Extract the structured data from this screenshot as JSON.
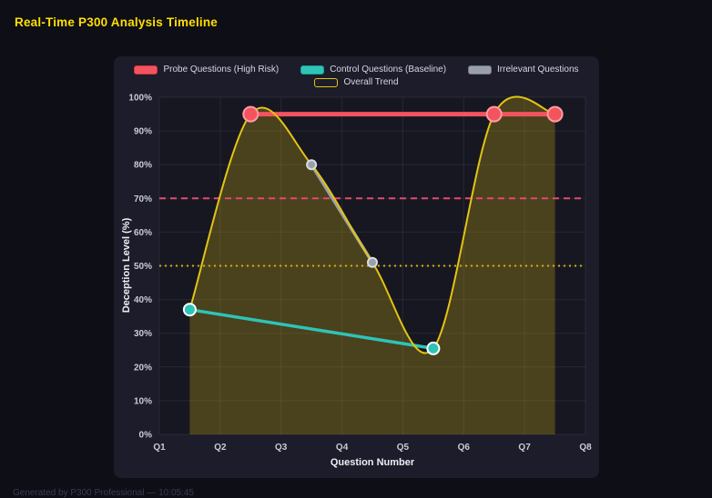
{
  "page": {
    "title": "Real-Time P300 Analysis Timeline",
    "footer": "Generated by P300 Professional — 10:05:45"
  },
  "colors": {
    "accent_yellow": "#ffdf00",
    "page_background": "#0e0e16",
    "panel_background": "#1c1c2a",
    "threshold_red": "#e8486e",
    "threshold_yellow": "#d4af06"
  },
  "chart_data": {
    "type": "line",
    "title": "Real-Time P300 Analysis Timeline",
    "xlabel": "Question Number",
    "ylabel": "Deception Level (%)",
    "xlim": [
      1,
      8
    ],
    "ylim": [
      0,
      100
    ],
    "grid": true,
    "legend_position": "top",
    "x_tick_values": [
      1,
      2,
      3,
      4,
      5,
      6,
      7,
      8
    ],
    "x_tick_labels": [
      "Q1",
      "Q2",
      "Q3",
      "Q4",
      "Q5",
      "Q6",
      "Q7",
      "Q8"
    ],
    "y_tick_values": [
      0,
      10,
      20,
      30,
      40,
      50,
      60,
      70,
      80,
      90,
      100
    ],
    "y_tick_labels": [
      "0%",
      "10%",
      "20%",
      "30%",
      "40%",
      "50%",
      "60%",
      "70%",
      "80%",
      "90%",
      "100%"
    ],
    "legend_rows": [
      [
        0,
        1,
        2
      ],
      [
        3
      ]
    ],
    "series": [
      {
        "key": "probe",
        "name": "Probe Questions (High Risk)",
        "color": "#f2545e",
        "marker_border": "#ff9aa3",
        "x": [
          2.5,
          6.5,
          7.5
        ],
        "y": [
          95,
          95,
          95
        ],
        "line_width": 5,
        "marker_radius": 8,
        "swatch": {
          "fill": "#f2545e",
          "border": "#d63440"
        }
      },
      {
        "key": "control",
        "name": "Control Questions (Baseline)",
        "color": "#2ec4b6",
        "marker_border": "#ffffff",
        "x": [
          1.5,
          5.5
        ],
        "y": [
          37,
          25.5
        ],
        "line_width": 3.5,
        "marker_radius": 6.5,
        "swatch": {
          "fill": "#2ec4b6",
          "border": "#17a093"
        }
      },
      {
        "key": "irrelevant",
        "name": "Irrelevant Questions",
        "color": "#99a0aa",
        "marker_border": "#d9dce1",
        "x": [
          3.5,
          4.5
        ],
        "y": [
          80,
          51
        ],
        "line_width": 3.5,
        "marker_radius": 5,
        "swatch": {
          "fill": "#99a0aa",
          "border": "#6e7580"
        }
      },
      {
        "key": "trend",
        "name": "Overall Trend",
        "color": "#e3c412",
        "marker_border": "#ffffff",
        "x": [
          1.5,
          2.5,
          3.5,
          4.5,
          5.5,
          6.5,
          7.5
        ],
        "y": [
          37,
          95,
          80,
          51,
          25.5,
          95,
          95
        ],
        "line_width": 2,
        "marker_radius": 0,
        "smooth": true,
        "fill": "rgba(214,182,20,0.27)",
        "swatch": {
          "fill": "rgba(0,0,0,0)",
          "border": "#e3c412"
        }
      }
    ],
    "thresholds": [
      {
        "value": 70,
        "color": "#e8486e",
        "dash": "7 5",
        "width": 2
      },
      {
        "value": 50,
        "color": "#d4af06",
        "dash": "2 4",
        "width": 2
      }
    ]
  }
}
